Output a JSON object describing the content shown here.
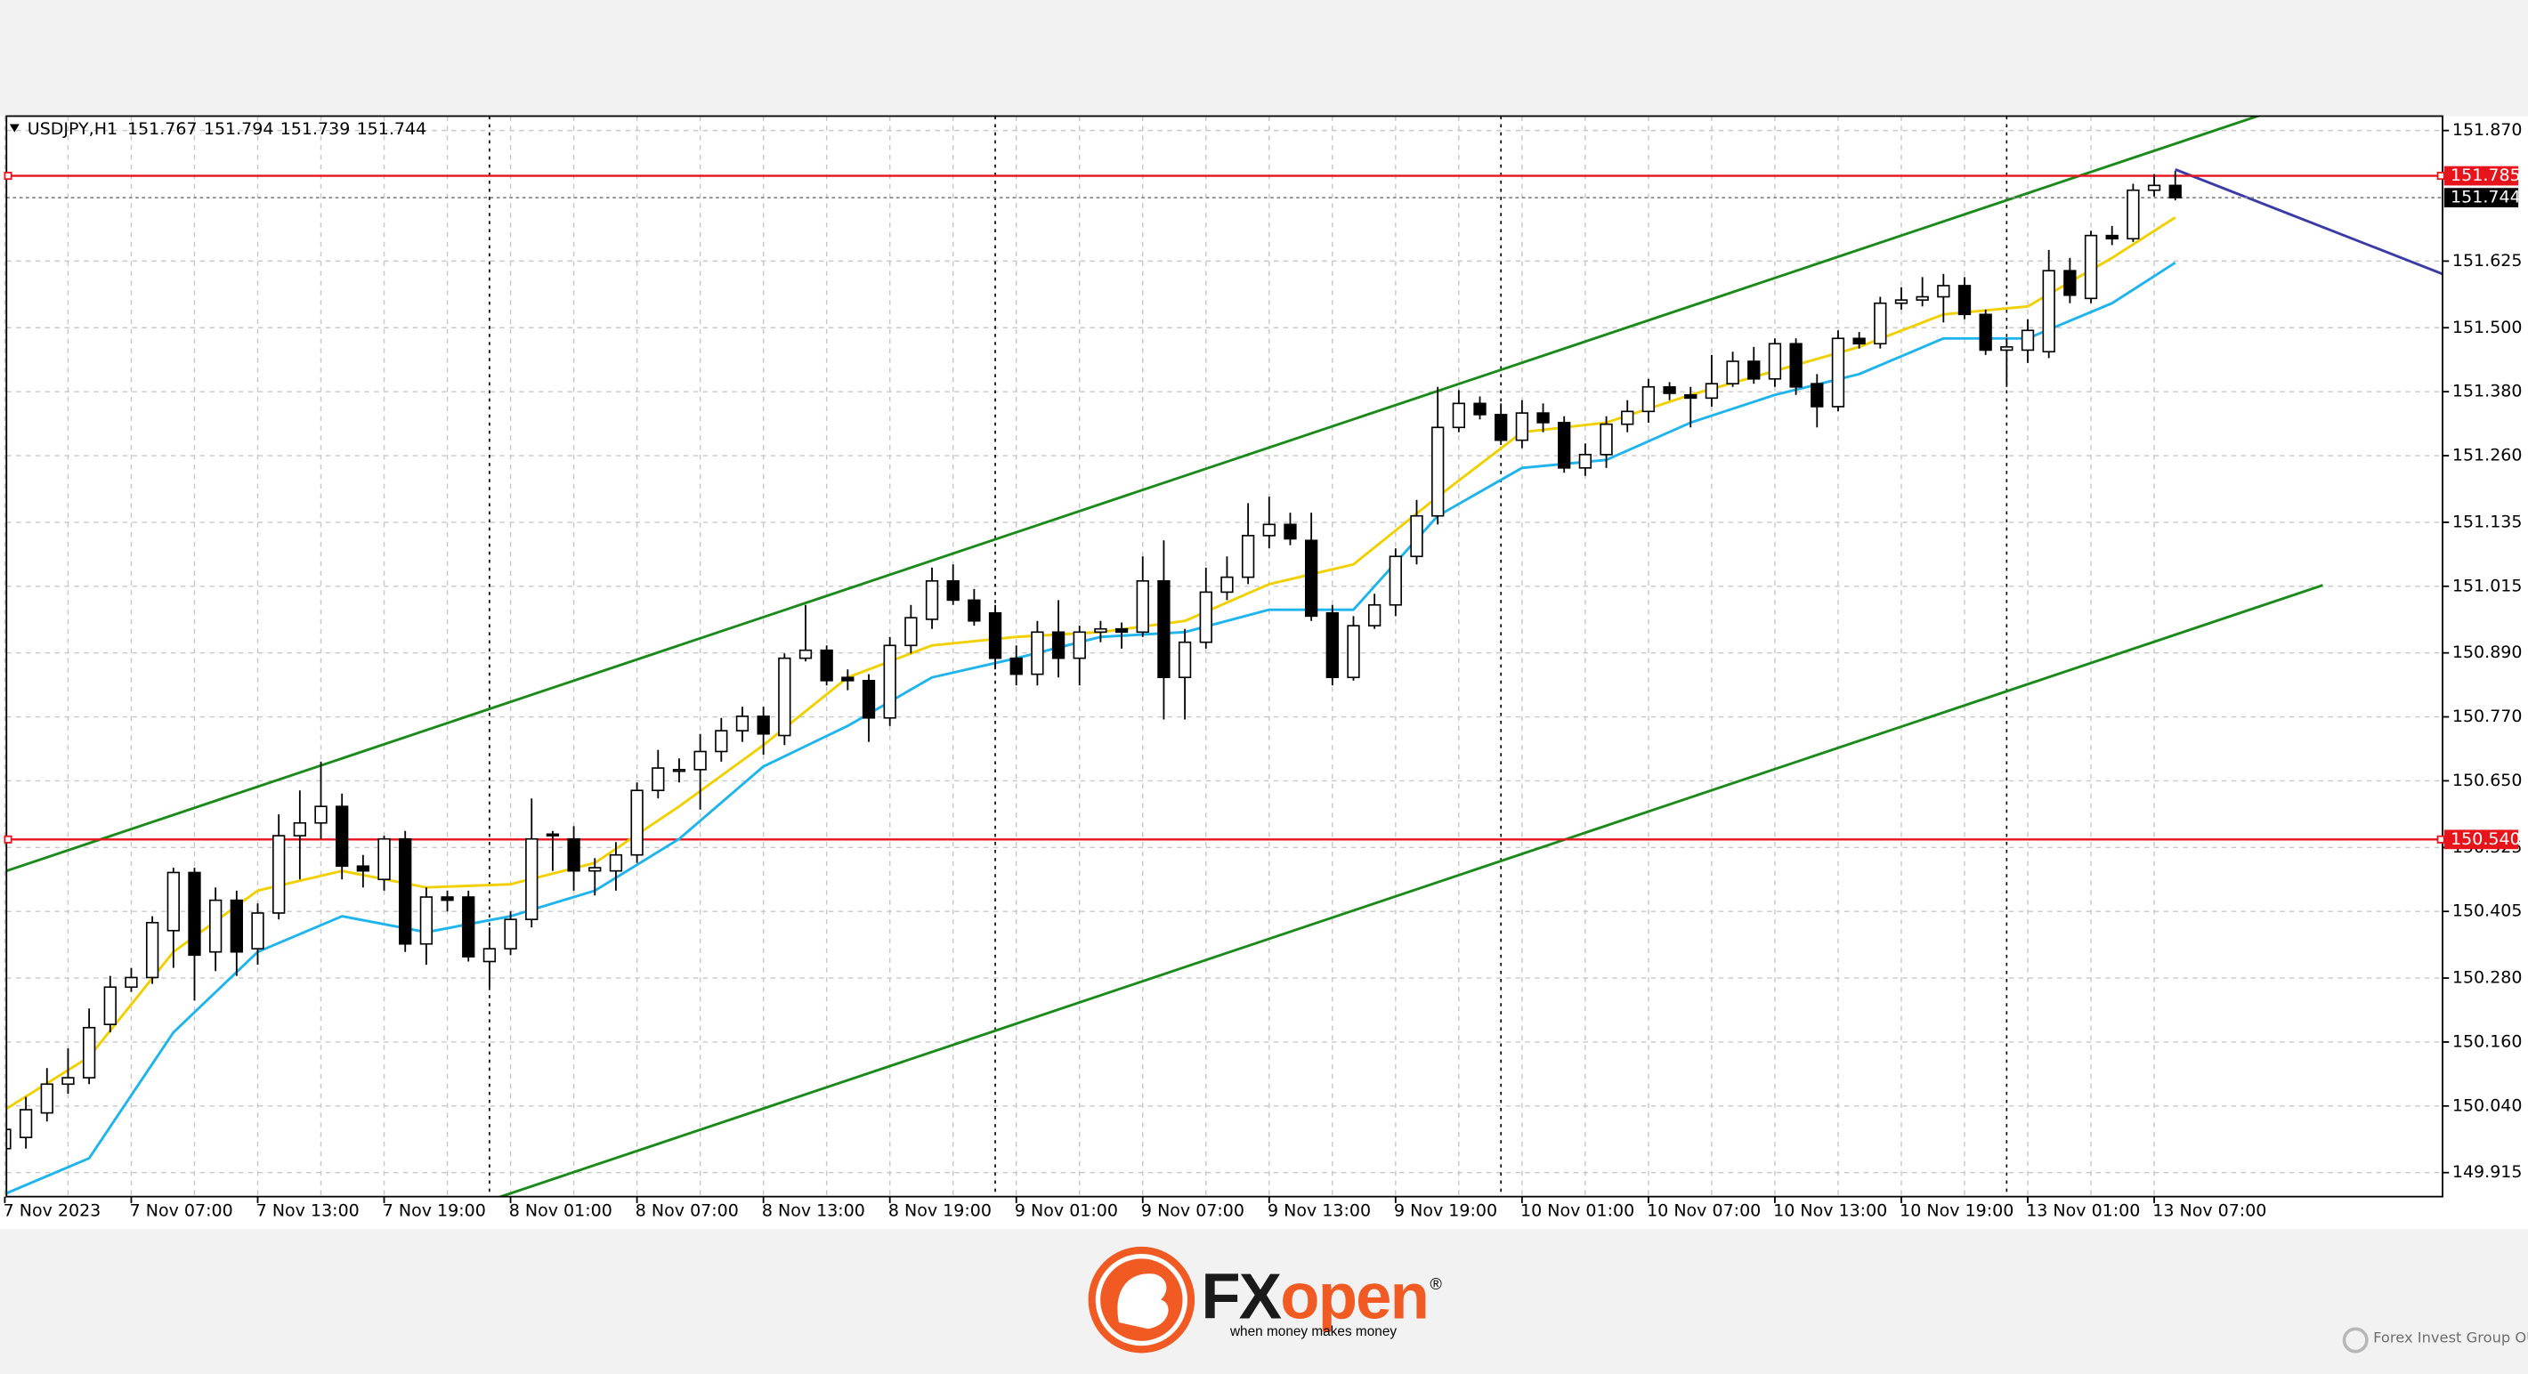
{
  "chart_data": {
    "type": "candlestick",
    "title": "USDJPY,H1",
    "categories": [
      "7 Nov 2023",
      null,
      null,
      null,
      null,
      null,
      "7 Nov 07:00",
      null,
      null,
      null,
      null,
      null,
      "7 Nov 13:00",
      null,
      null,
      null,
      null,
      null,
      "7 Nov 19:00",
      null,
      null,
      null,
      null,
      null,
      "8 Nov 01:00",
      null,
      null,
      null,
      null,
      null,
      "8 Nov 07:00",
      null,
      null,
      null,
      null,
      null,
      "8 Nov 13:00",
      null,
      null,
      null,
      null,
      null,
      "8 Nov 19:00",
      null,
      null,
      null,
      null,
      null,
      "9 Nov 01:00",
      null,
      null,
      null,
      null,
      null,
      "9 Nov 07:00",
      null,
      null,
      null,
      null,
      null,
      "9 Nov 13:00",
      null,
      null,
      null,
      null,
      null,
      "9 Nov 19:00",
      null,
      null,
      null,
      null,
      null,
      "10 Nov 01:00",
      null,
      null,
      null,
      null,
      null,
      "10 Nov 07:00",
      null,
      null,
      null,
      null,
      null,
      "10 Nov 13:00",
      null,
      null,
      null,
      null,
      null,
      "10 Nov 19:00",
      null,
      null,
      null,
      null,
      null,
      "13 Nov 01:00",
      null,
      null,
      null,
      null,
      null,
      "13 Nov 07:00",
      null
    ],
    "open": [
      149.96,
      149.981,
      150.027,
      150.081,
      150.093,
      150.193,
      150.263,
      150.281,
      150.369,
      150.478,
      150.329,
      150.426,
      150.335,
      150.402,
      150.547,
      150.571,
      150.602,
      150.49,
      150.465,
      150.541,
      150.344,
      150.432,
      150.432,
      150.311,
      150.335,
      150.39,
      150.55,
      150.541,
      150.481,
      150.481,
      150.511,
      150.632,
      150.668,
      150.671,
      150.705,
      150.744,
      150.771,
      150.735,
      150.88,
      150.895,
      150.844,
      150.838,
      150.768,
      150.904,
      150.953,
      151.025,
      150.989,
      150.965,
      150.88,
      150.85,
      150.929,
      150.88,
      150.929,
      150.935,
      150.929,
      151.025,
      150.844,
      150.91,
      151.004,
      151.032,
      151.11,
      151.131,
      151.101,
      150.965,
      150.844,
      150.941,
      150.98,
      151.071,
      151.147,
      151.313,
      151.358,
      151.337,
      151.289,
      151.34,
      151.322,
      151.237,
      151.262,
      151.319,
      151.343,
      151.389,
      151.374,
      151.368,
      151.395,
      151.437,
      151.404,
      151.47,
      151.395,
      151.352,
      151.48,
      151.47,
      151.546,
      151.552,
      151.558,
      151.579,
      151.525,
      151.458,
      151.458,
      151.455,
      151.607,
      151.555,
      151.673,
      151.667,
      151.758,
      151.767
    ],
    "high": [
      150.027,
      150.057,
      150.111,
      150.148,
      150.223,
      150.284,
      150.299,
      150.396,
      150.487,
      150.487,
      150.45,
      150.444,
      150.42,
      150.587,
      150.632,
      150.686,
      150.626,
      150.511,
      150.547,
      150.556,
      150.45,
      150.444,
      150.444,
      150.375,
      150.405,
      150.617,
      150.556,
      150.565,
      150.505,
      150.535,
      150.647,
      150.708,
      150.692,
      150.738,
      150.768,
      150.789,
      150.789,
      150.889,
      150.98,
      150.904,
      150.859,
      150.85,
      150.92,
      150.98,
      151.05,
      151.056,
      151.01,
      150.98,
      150.904,
      150.95,
      150.989,
      150.941,
      150.95,
      150.947,
      151.071,
      151.101,
      150.935,
      151.05,
      151.071,
      151.171,
      151.183,
      151.153,
      151.153,
      150.98,
      150.959,
      151.001,
      151.086,
      151.177,
      151.389,
      151.383,
      151.371,
      151.358,
      151.364,
      151.358,
      151.334,
      151.283,
      151.334,
      151.364,
      151.404,
      151.398,
      151.389,
      151.449,
      151.455,
      151.464,
      151.48,
      151.48,
      151.413,
      151.495,
      151.492,
      151.558,
      151.576,
      151.595,
      151.601,
      151.595,
      151.534,
      151.48,
      151.516,
      151.646,
      151.631,
      151.682,
      151.691,
      151.77,
      151.788,
      151.794
    ],
    "low": [
      149.921,
      149.96,
      150.011,
      150.063,
      150.081,
      150.178,
      150.254,
      150.269,
      150.299,
      150.238,
      150.293,
      150.284,
      150.305,
      150.39,
      150.465,
      150.541,
      150.465,
      150.45,
      150.444,
      150.329,
      150.305,
      150.405,
      150.311,
      150.263,
      150.323,
      150.375,
      150.481,
      150.444,
      150.435,
      150.444,
      150.496,
      150.617,
      150.647,
      150.596,
      150.686,
      150.723,
      150.699,
      150.717,
      150.874,
      150.829,
      150.82,
      150.723,
      150.753,
      150.889,
      150.935,
      150.98,
      150.941,
      150.859,
      150.829,
      150.829,
      150.844,
      150.829,
      150.91,
      150.898,
      150.92,
      150.765,
      150.765,
      150.898,
      150.989,
      151.019,
      151.086,
      151.092,
      150.95,
      150.829,
      150.838,
      150.935,
      150.959,
      151.056,
      151.131,
      151.304,
      151.328,
      151.28,
      151.274,
      151.304,
      151.228,
      151.222,
      151.237,
      151.304,
      151.322,
      151.364,
      151.313,
      151.352,
      151.389,
      151.395,
      151.389,
      151.374,
      151.313,
      151.343,
      151.461,
      151.461,
      151.534,
      151.54,
      151.51,
      151.516,
      151.449,
      151.389,
      151.434,
      151.443,
      151.546,
      151.546,
      151.655,
      151.661,
      151.746,
      151.739
    ],
    "close": [
      149.996,
      150.033,
      150.081,
      150.093,
      150.187,
      150.263,
      150.281,
      150.384,
      150.478,
      150.323,
      150.426,
      150.329,
      150.402,
      150.547,
      150.571,
      150.602,
      150.49,
      150.481,
      150.541,
      150.344,
      150.432,
      150.426,
      150.32,
      150.335,
      150.39,
      150.541,
      150.547,
      150.481,
      150.487,
      150.511,
      150.632,
      150.674,
      150.671,
      150.705,
      150.744,
      150.771,
      150.738,
      150.88,
      150.895,
      150.838,
      150.838,
      150.768,
      150.904,
      150.956,
      151.025,
      150.989,
      150.95,
      150.88,
      150.85,
      150.929,
      150.88,
      150.929,
      150.935,
      150.929,
      151.025,
      150.844,
      150.91,
      151.004,
      151.032,
      151.11,
      151.131,
      151.104,
      150.959,
      150.844,
      150.941,
      150.98,
      151.071,
      151.147,
      151.313,
      151.358,
      151.337,
      151.289,
      151.34,
      151.322,
      151.237,
      151.262,
      151.319,
      151.343,
      151.389,
      151.377,
      151.368,
      151.395,
      151.437,
      151.404,
      151.47,
      151.389,
      151.352,
      151.48,
      151.47,
      151.546,
      151.552,
      151.558,
      151.579,
      151.525,
      151.458,
      151.464,
      151.495,
      151.607,
      151.561,
      151.673,
      151.667,
      151.758,
      151.767,
      151.744
    ],
    "up_color": "#ffffff",
    "down_color": "#000000",
    "ylim": [
      149.87,
      151.897
    ],
    "yticks": [
      {
        "value": 151.87,
        "label": "151.870"
      },
      151.625,
      {
        "value": 151.5,
        "label": "151.500"
      },
      {
        "value": 151.38,
        "label": "151.380"
      },
      {
        "value": 151.26,
        "label": "151.260"
      },
      151.135,
      151.015,
      {
        "value": 150.89,
        "label": "150.890"
      },
      {
        "value": 150.77,
        "label": "150.770"
      },
      {
        "value": 150.65,
        "label": "150.650"
      },
      150.525,
      150.405,
      {
        "value": 150.28,
        "label": "150.280"
      },
      {
        "value": 150.16,
        "label": "150.160"
      },
      {
        "value": 150.04,
        "label": "150.040"
      },
      149.915
    ],
    "grid": true,
    "day_separators": [
      23,
      47,
      71,
      95
    ],
    "overlays": [
      {
        "color": "#f2d000",
        "x": [
          0,
          4,
          8,
          12,
          16,
          20,
          24,
          28,
          32,
          36,
          40,
          44,
          48,
          52,
          56,
          60,
          64,
          68,
          72,
          76,
          80,
          84,
          88,
          92,
          96,
          100,
          103
        ],
        "values": [
          150.033,
          150.132,
          150.329,
          150.444,
          150.481,
          150.45,
          150.456,
          150.496,
          150.602,
          150.717,
          150.844,
          150.904,
          150.92,
          150.929,
          150.95,
          151.019,
          151.056,
          151.183,
          151.304,
          151.322,
          151.374,
          151.419,
          151.464,
          151.525,
          151.54,
          151.631,
          151.707
        ]
      },
      {
        "color": "#1eb4ee",
        "x": [
          0,
          4,
          8,
          12,
          16,
          20,
          24,
          28,
          32,
          36,
          40,
          44,
          48,
          52,
          56,
          60,
          64,
          68,
          72,
          76,
          80,
          84,
          88,
          92,
          96,
          100,
          103
        ],
        "values": [
          149.875,
          149.942,
          150.178,
          150.329,
          150.396,
          150.366,
          150.396,
          150.444,
          150.541,
          150.677,
          150.753,
          150.844,
          150.88,
          150.92,
          150.929,
          150.971,
          150.971,
          151.147,
          151.237,
          151.252,
          151.322,
          151.374,
          151.413,
          151.48,
          151.48,
          151.546,
          151.622
        ]
      }
    ],
    "trendlines": [
      {
        "color": "#1a8a1a",
        "x": [
          0,
          110
        ],
        "values": [
          150.48,
          151.938
        ]
      },
      {
        "color": "#1a8a1a",
        "x": [
          20,
          110
        ],
        "values": [
          149.823,
          151.017
        ]
      },
      {
        "color": "#3a3aa8",
        "x": [
          103,
          116
        ],
        "values": [
          151.797,
          151.596
        ]
      }
    ],
    "hlines": [
      {
        "value": 151.785,
        "color": "#e8141b"
      },
      {
        "value": 150.54,
        "label": "150.540",
        "color": "#e8141b"
      }
    ]
  },
  "logo": {
    "parts": [
      "FX",
      "open"
    ],
    "tagline": "when money makes money",
    "mark": "®"
  },
  "watermark": "Forex Invest Group OU"
}
